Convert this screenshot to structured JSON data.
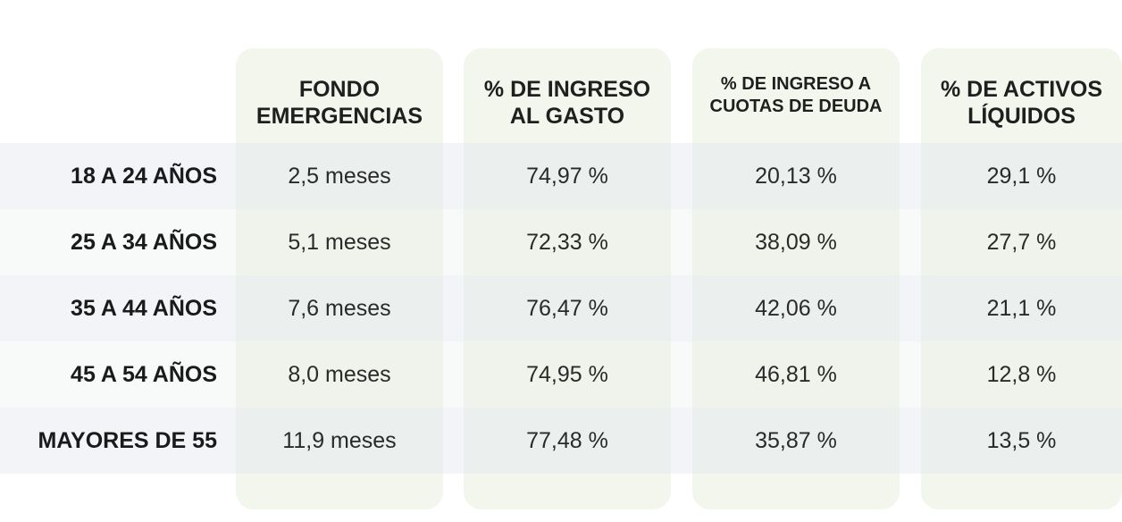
{
  "headers": [
    {
      "line1": "FONDO",
      "line2": "EMERGENCIAS"
    },
    {
      "line1": "% DE INGRESO",
      "line2": "AL GASTO"
    },
    {
      "line1": "% DE INGRESO A",
      "line2": "CUOTAS DE DEUDA"
    },
    {
      "line1": "% DE ACTIVOS",
      "line2": "LÍQUIDOS"
    }
  ],
  "rows": [
    {
      "label": "18 A 24 AÑOS",
      "values": [
        "2,5 meses",
        "74,97 %",
        "20,13 %",
        "29,1 %"
      ]
    },
    {
      "label": "25 A 34 AÑOS",
      "values": [
        "5,1 meses",
        "72,33 %",
        "38,09 %",
        "27,7 %"
      ]
    },
    {
      "label": "35 A 44 AÑOS",
      "values": [
        "7,6 meses",
        "76,47 %",
        "42,06 %",
        "21,1 %"
      ]
    },
    {
      "label": "45 A 54 AÑOS",
      "values": [
        "8,0 meses",
        "74,95 %",
        "46,81 %",
        "12,8 %"
      ]
    },
    {
      "label": "MAYORES DE 55",
      "values": [
        "11,9 meses",
        "77,48 %",
        "35,87 %",
        "13,5 %"
      ]
    }
  ],
  "colors": {
    "column_bg": "#f3f6ec",
    "row_band_a": "#eef0f6",
    "row_band_b": "#f1f2f1",
    "text": "#1d1d1d"
  }
}
